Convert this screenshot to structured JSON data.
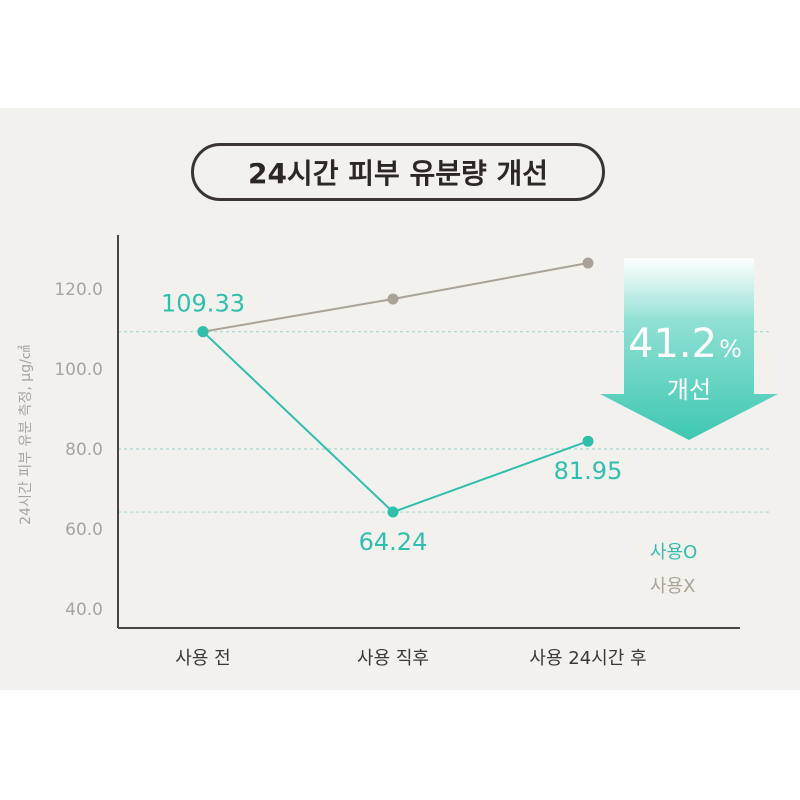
{
  "title": "24시간 피부 유분량 개선",
  "badge": {
    "percent": "41.2",
    "percent_sign": "%",
    "text": "개선"
  },
  "colors": {
    "used": "#2fbfad",
    "unused": "#a9a296",
    "background": "#f3f1ed"
  },
  "chart_data": {
    "type": "line",
    "title": "24시간 피부 유분량 개선",
    "ylabel": "24시간 피부 유분 측정, μg/㎠",
    "xlabel": "",
    "categories": [
      "사용 전",
      "사용 직후",
      "사용 24시간 후"
    ],
    "yticks": [
      "120.0",
      "100.0",
      "80.0",
      "60.0",
      "40.0"
    ],
    "ytick_values": [
      120,
      100,
      80,
      60,
      40
    ],
    "ylim": [
      40,
      130
    ],
    "series": [
      {
        "name": "사용O",
        "values": [
          109.33,
          64.24,
          81.95
        ],
        "labels": [
          "109.33",
          "64.24",
          "81.95"
        ],
        "color": "#2fbfad"
      },
      {
        "name": "사용X",
        "values": [
          109.33,
          117.5,
          126.5
        ],
        "color": "#a9a296"
      }
    ],
    "legend": {
      "position": "right",
      "entries": [
        "사용O",
        "사용X"
      ]
    },
    "reference_lines": [
      109.33,
      80,
      64.24
    ]
  }
}
